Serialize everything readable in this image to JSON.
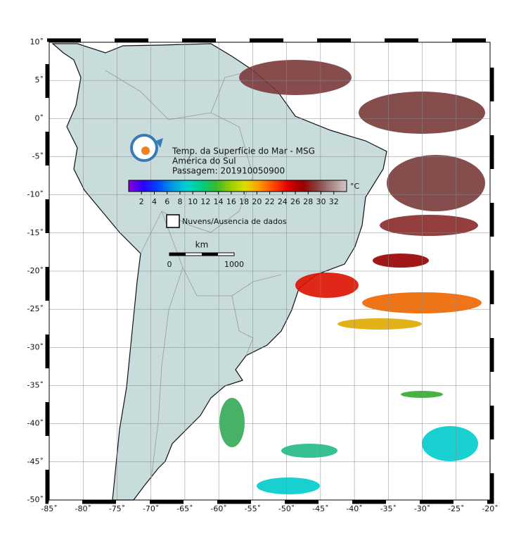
{
  "map": {
    "title_lines": [
      "Temp. da Superfície do Mar - MSG",
      "América do Sul",
      "Passagem: 201910050900"
    ],
    "lon_range": [
      -85,
      -20
    ],
    "lat_range": [
      -50,
      10
    ],
    "lon_ticks": [
      {
        "value": -85,
        "label": "-85˚"
      },
      {
        "value": -80,
        "label": "-80˚"
      },
      {
        "value": -75,
        "label": "-75˚"
      },
      {
        "value": -70,
        "label": "-70˚"
      },
      {
        "value": -65,
        "label": "-65˚"
      },
      {
        "value": -60,
        "label": "-60˚"
      },
      {
        "value": -55,
        "label": "-55˚"
      },
      {
        "value": -50,
        "label": "-50˚"
      },
      {
        "value": -45,
        "label": "-45˚"
      },
      {
        "value": -40,
        "label": "-40˚"
      },
      {
        "value": -35,
        "label": "-35˚"
      },
      {
        "value": -30,
        "label": "-30˚"
      },
      {
        "value": -25,
        "label": "-25˚"
      },
      {
        "value": -20,
        "label": "-20˚"
      }
    ],
    "lat_ticks": [
      {
        "value": 10,
        "label": "10˚"
      },
      {
        "value": 5,
        "label": "5˚"
      },
      {
        "value": 0,
        "label": "0˚"
      },
      {
        "value": -5,
        "label": "-5˚"
      },
      {
        "value": -10,
        "label": "-10˚"
      },
      {
        "value": -15,
        "label": "-15˚"
      },
      {
        "value": -20,
        "label": "-20˚"
      },
      {
        "value": -25,
        "label": "-25˚"
      },
      {
        "value": -30,
        "label": "-30˚"
      },
      {
        "value": -35,
        "label": "-35˚"
      },
      {
        "value": -40,
        "label": "-40˚"
      },
      {
        "value": -45,
        "label": "-45˚"
      },
      {
        "value": -50,
        "label": "-50˚"
      }
    ],
    "colorbar": {
      "unit": "°C",
      "range": [
        0,
        34
      ],
      "ticks": [
        2,
        4,
        6,
        8,
        10,
        12,
        14,
        16,
        18,
        20,
        22,
        24,
        26,
        28,
        30,
        32
      ],
      "colors": [
        "#8a00d4",
        "#2a00ff",
        "#0044ff",
        "#0099e0",
        "#00d0d0",
        "#00cc88",
        "#33bb33",
        "#99cc00",
        "#dddd00",
        "#ff9900",
        "#ff4400",
        "#dd0000",
        "#990000",
        "#884444",
        "#aa8888",
        "#d8c8c8"
      ]
    },
    "legend": "Nuvens/Ausencia de dados",
    "scale": {
      "unit": "km",
      "start": "0",
      "end": "1000"
    }
  }
}
